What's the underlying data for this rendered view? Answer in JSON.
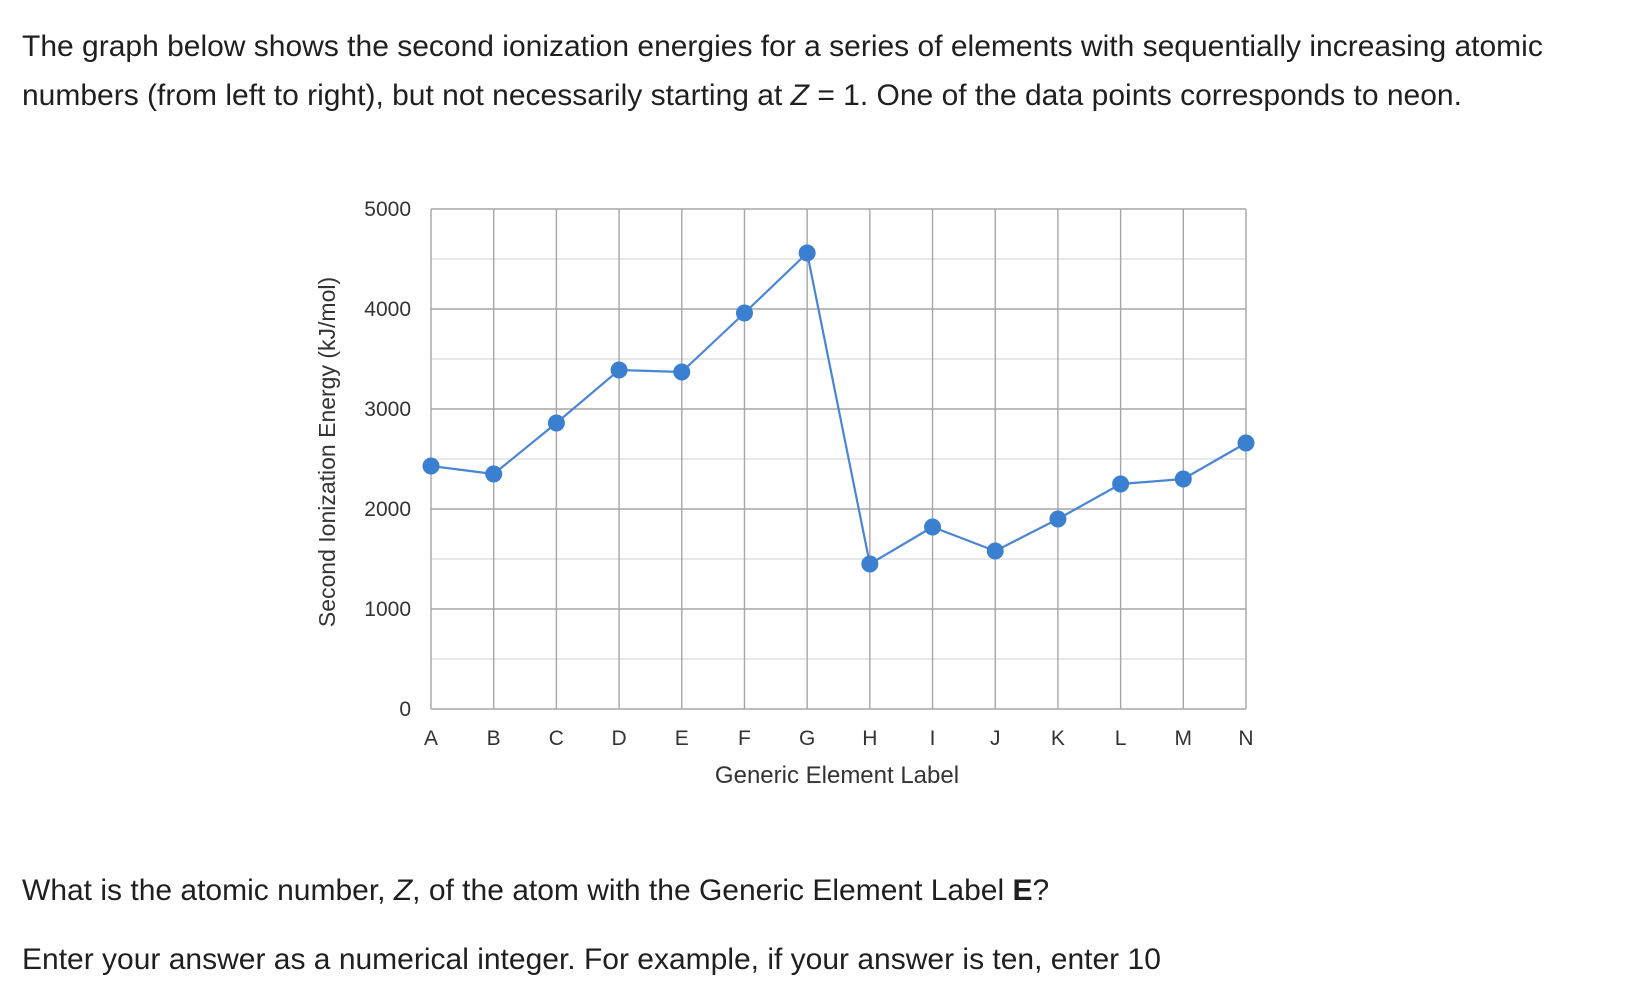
{
  "intro": {
    "part1": "The graph below shows the second ionization energies for a series of elements with sequentially increasing atomic numbers (from left to right), but not necessarily starting at ",
    "z_symbol": "Z",
    "part2": " = 1. One of the data points corresponds to neon."
  },
  "question": {
    "part1": "What is the atomic number, ",
    "z_symbol": "Z",
    "part2": ", of the atom with the Generic Element Label ",
    "label_bold": "E",
    "part3": "?"
  },
  "instructions": "Enter your answer as a numerical integer. For example, if your answer is ten, enter 10",
  "chart_data": {
    "type": "line",
    "categories": [
      "A",
      "B",
      "C",
      "D",
      "E",
      "F",
      "G",
      "H",
      "I",
      "J",
      "K",
      "L",
      "M",
      "N"
    ],
    "series": [
      {
        "values": [
          2430,
          2350,
          2860,
          3390,
          3370,
          3960,
          4560,
          1450,
          1820,
          1580,
          1900,
          2250,
          2300,
          2660
        ]
      }
    ],
    "xlabel": "Generic Element Label",
    "ylabel": "Second Ionization Energy (kJ/mol)",
    "ylim": [
      0,
      5000
    ],
    "yticks": [
      0,
      1000,
      2000,
      3000,
      4000,
      5000
    ],
    "grid": true,
    "color": "#3a7fd0",
    "line_color": "#4a86d6"
  }
}
